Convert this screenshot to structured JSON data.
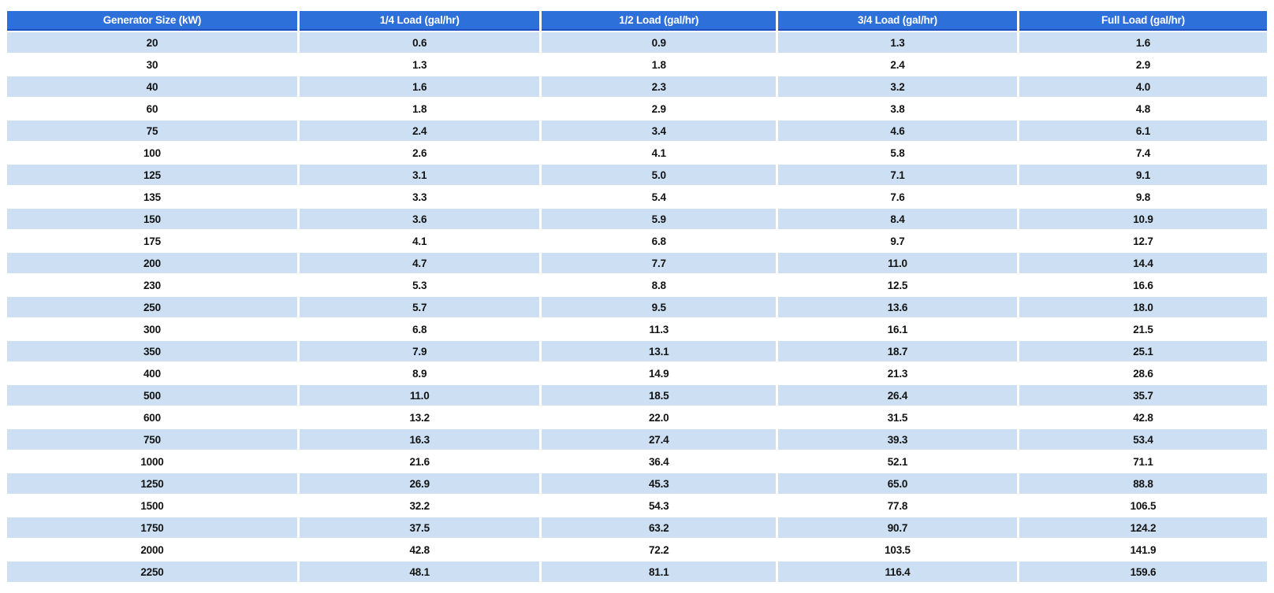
{
  "colors": {
    "header_bg": "#2e70d9",
    "header_border": "#1e4fc4",
    "header_text": "#ffffff",
    "row_bg": "#ffffff",
    "row_alt_bg": "#cde0f3",
    "cell_text": "#121212"
  },
  "chart_data": {
    "type": "table",
    "columns": [
      "Generator Size (kW)",
      "1/4 Load (gal/hr)",
      "1/2 Load (gal/hr)",
      "3/4 Load (gal/hr)",
      "Full Load (gal/hr)"
    ],
    "rows": [
      [
        "20",
        "0.6",
        "0.9",
        "1.3",
        "1.6"
      ],
      [
        "30",
        "1.3",
        "1.8",
        "2.4",
        "2.9"
      ],
      [
        "40",
        "1.6",
        "2.3",
        "3.2",
        "4.0"
      ],
      [
        "60",
        "1.8",
        "2.9",
        "3.8",
        "4.8"
      ],
      [
        "75",
        "2.4",
        "3.4",
        "4.6",
        "6.1"
      ],
      [
        "100",
        "2.6",
        "4.1",
        "5.8",
        "7.4"
      ],
      [
        "125",
        "3.1",
        "5.0",
        "7.1",
        "9.1"
      ],
      [
        "135",
        "3.3",
        "5.4",
        "7.6",
        "9.8"
      ],
      [
        "150",
        "3.6",
        "5.9",
        "8.4",
        "10.9"
      ],
      [
        "175",
        "4.1",
        "6.8",
        "9.7",
        "12.7"
      ],
      [
        "200",
        "4.7",
        "7.7",
        "11.0",
        "14.4"
      ],
      [
        "230",
        "5.3",
        "8.8",
        "12.5",
        "16.6"
      ],
      [
        "250",
        "5.7",
        "9.5",
        "13.6",
        "18.0"
      ],
      [
        "300",
        "6.8",
        "11.3",
        "16.1",
        "21.5"
      ],
      [
        "350",
        "7.9",
        "13.1",
        "18.7",
        "25.1"
      ],
      [
        "400",
        "8.9",
        "14.9",
        "21.3",
        "28.6"
      ],
      [
        "500",
        "11.0",
        "18.5",
        "26.4",
        "35.7"
      ],
      [
        "600",
        "13.2",
        "22.0",
        "31.5",
        "42.8"
      ],
      [
        "750",
        "16.3",
        "27.4",
        "39.3",
        "53.4"
      ],
      [
        "1000",
        "21.6",
        "36.4",
        "52.1",
        "71.1"
      ],
      [
        "1250",
        "26.9",
        "45.3",
        "65.0",
        "88.8"
      ],
      [
        "1500",
        "32.2",
        "54.3",
        "77.8",
        "106.5"
      ],
      [
        "1750",
        "37.5",
        "63.2",
        "90.7",
        "124.2"
      ],
      [
        "2000",
        "42.8",
        "72.2",
        "103.5",
        "141.9"
      ],
      [
        "2250",
        "48.1",
        "81.1",
        "116.4",
        "159.6"
      ]
    ]
  }
}
